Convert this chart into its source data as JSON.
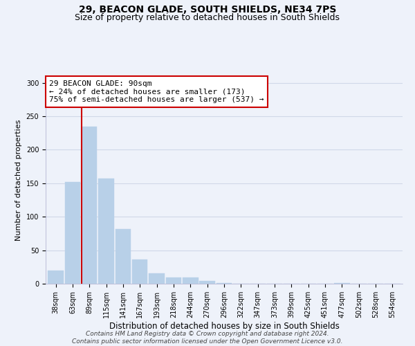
{
  "title1": "29, BEACON GLADE, SOUTH SHIELDS, NE34 7PS",
  "title2": "Size of property relative to detached houses in South Shields",
  "xlabel": "Distribution of detached houses by size in South Shields",
  "ylabel": "Number of detached properties",
  "bar_labels": [
    "38sqm",
    "63sqm",
    "89sqm",
    "115sqm",
    "141sqm",
    "167sqm",
    "193sqm",
    "218sqm",
    "244sqm",
    "270sqm",
    "296sqm",
    "322sqm",
    "347sqm",
    "373sqm",
    "399sqm",
    "425sqm",
    "451sqm",
    "477sqm",
    "502sqm",
    "528sqm",
    "554sqm"
  ],
  "bar_values": [
    20,
    152,
    235,
    157,
    82,
    36,
    15,
    9,
    9,
    4,
    1,
    0,
    0,
    0,
    0,
    0,
    0,
    1,
    0,
    0,
    0
  ],
  "bar_color": "#b8d0e8",
  "bar_edge_color": "#b8d0e8",
  "highlight_line_color": "#cc0000",
  "highlight_bar_index": 2,
  "annotation_line1": "29 BEACON GLADE: 90sqm",
  "annotation_line2": "← 24% of detached houses are smaller (173)",
  "annotation_line3": "75% of semi-detached houses are larger (537) →",
  "annotation_box_color": "#ffffff",
  "annotation_box_edge": "#cc0000",
  "ylim": [
    0,
    310
  ],
  "yticks": [
    0,
    50,
    100,
    150,
    200,
    250,
    300
  ],
  "grid_color": "#d0d8e8",
  "bg_color": "#eef2fa",
  "footer1": "Contains HM Land Registry data © Crown copyright and database right 2024.",
  "footer2": "Contains public sector information licensed under the Open Government Licence v3.0.",
  "title1_fontsize": 10,
  "title2_fontsize": 9,
  "xlabel_fontsize": 8.5,
  "ylabel_fontsize": 8,
  "tick_fontsize": 7,
  "annotation_fontsize": 8,
  "footer_fontsize": 6.5
}
